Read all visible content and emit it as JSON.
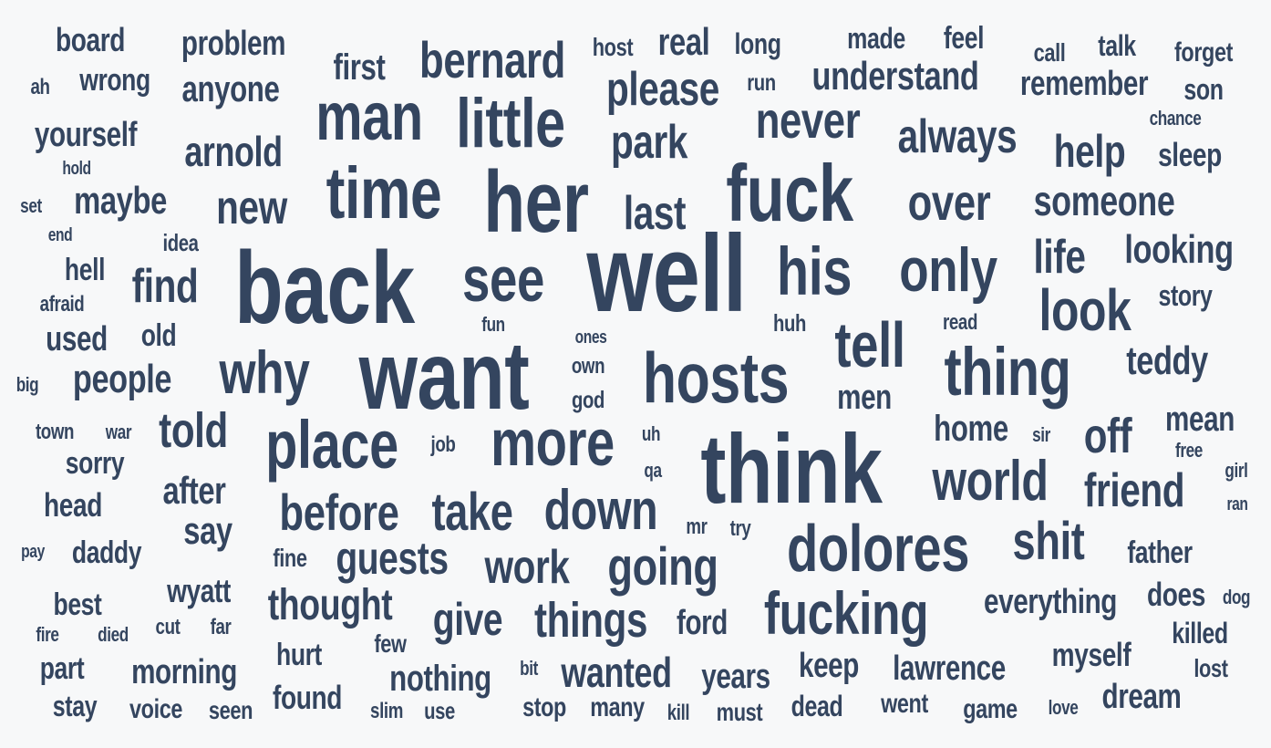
{
  "style": {
    "word_color": "#34455f",
    "background": "#f7f8f9"
  },
  "words": [
    "board",
    "problem",
    "first",
    "bernard",
    "host",
    "real",
    "long",
    "made",
    "feel",
    "call",
    "talk",
    "forget",
    "ah",
    "wrong",
    "anyone",
    "please",
    "run",
    "understand",
    "remember",
    "son",
    "yourself",
    "man",
    "little",
    "chance",
    "never",
    "always",
    "arnold",
    "park",
    "help",
    "sleep",
    "hold",
    "time",
    "her",
    "fuck",
    "set",
    "maybe",
    "new",
    "last",
    "over",
    "someone",
    "end",
    "idea",
    "well",
    "back",
    "see",
    "his",
    "only",
    "life",
    "looking",
    "hell",
    "find",
    "afraid",
    "story",
    "look",
    "fun",
    "huh",
    "read",
    "used",
    "old",
    "ones",
    "tell",
    "want",
    "thing",
    "big",
    "people",
    "why",
    "hosts",
    "teddy",
    "own",
    "god",
    "men",
    "town",
    "war",
    "told",
    "job",
    "uh",
    "think",
    "place",
    "more",
    "home",
    "sir",
    "off",
    "mean",
    "sorry",
    "free",
    "qa",
    "world",
    "girl",
    "after",
    "friend",
    "head",
    "before",
    "take",
    "down",
    "ran",
    "say",
    "mr",
    "try",
    "dolores",
    "shit",
    "pay",
    "daddy",
    "fine",
    "guests",
    "father",
    "work",
    "going",
    "wyatt",
    "best",
    "does",
    "dog",
    "thought",
    "everything",
    "fucking",
    "give",
    "things",
    "ford",
    "fire",
    "died",
    "cut",
    "far",
    "killed",
    "few",
    "hurt",
    "myself",
    "part",
    "morning",
    "bit",
    "wanted",
    "keep",
    "lawrence",
    "lost",
    "years",
    "nothing",
    "stay",
    "voice",
    "seen",
    "found",
    "dead",
    "went",
    "dream",
    "slim",
    "use",
    "stop",
    "many",
    "kill",
    "must",
    "game",
    "love"
  ]
}
